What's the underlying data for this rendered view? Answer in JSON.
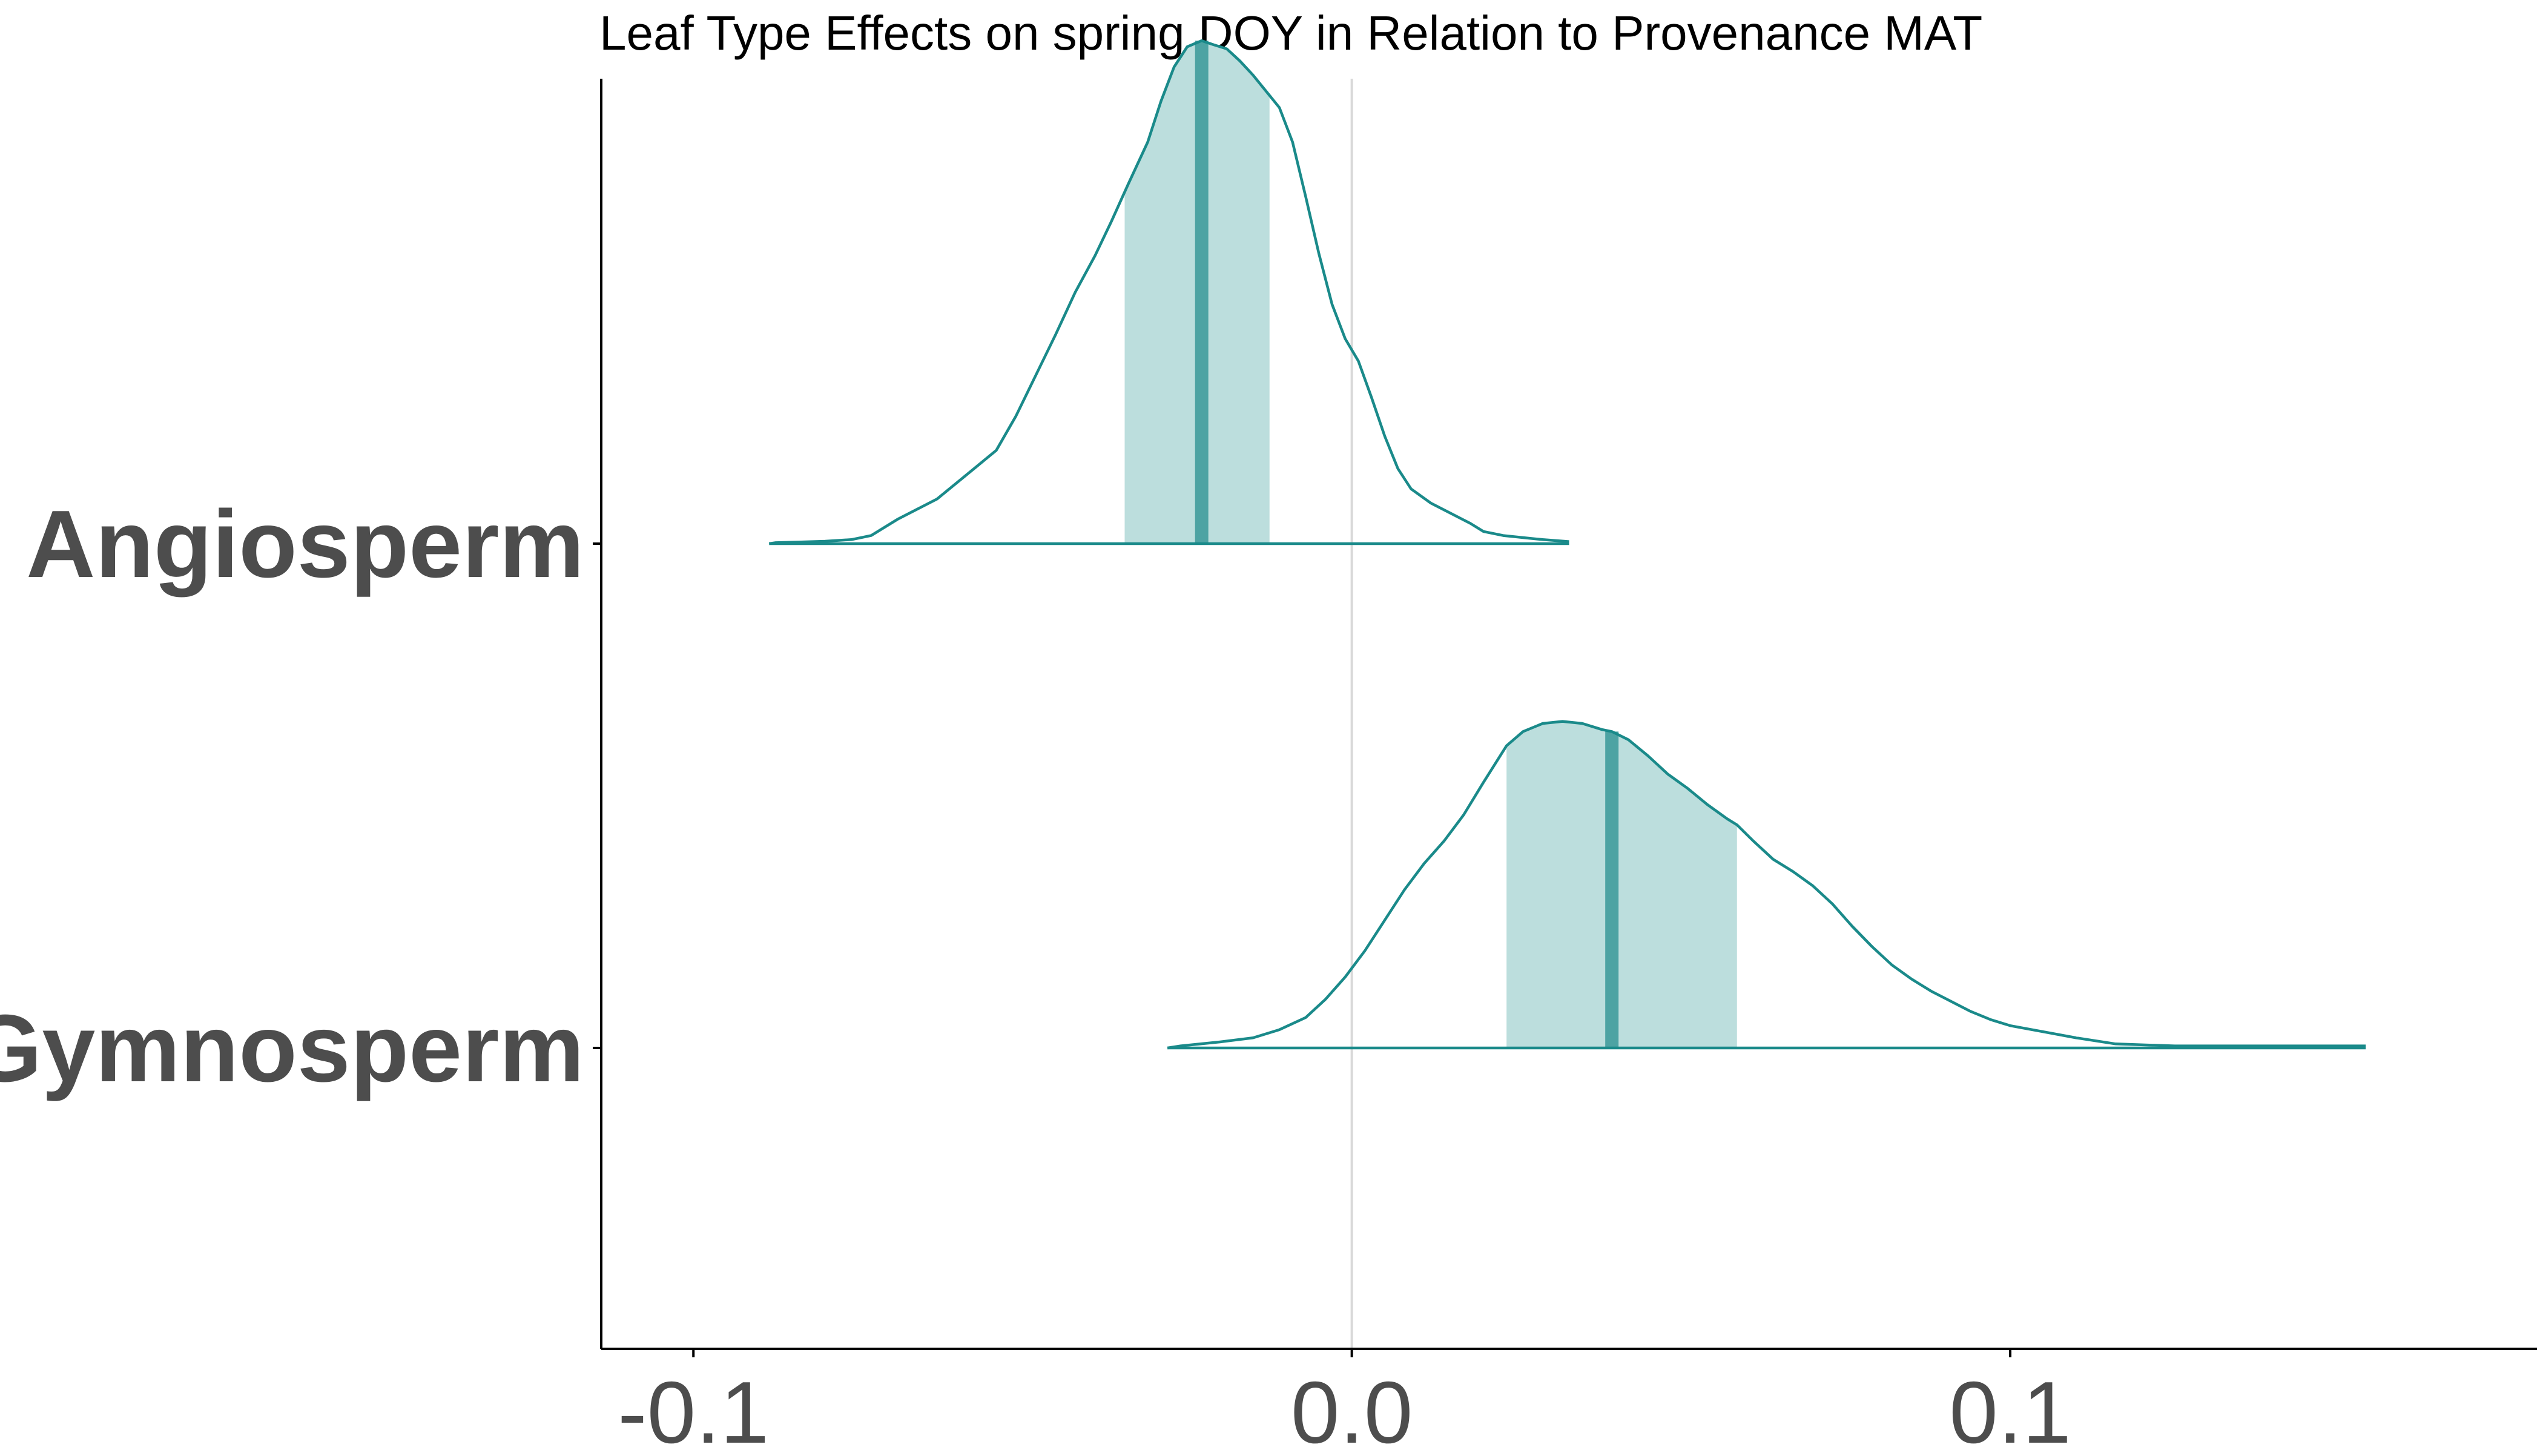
{
  "chart_data": {
    "type": "density_ridges",
    "title": "Leaf Type Effects on spring DOY in Relation to Provenance MAT",
    "xlabel": "",
    "ylabel": "",
    "xlim": [
      -0.114,
      0.18
    ],
    "x_ticks": [
      {
        "value": -0.1,
        "label": "-0.1"
      },
      {
        "value": 0.0,
        "label": "0.0"
      },
      {
        "value": 0.1,
        "label": "0.1"
      }
    ],
    "reference_line_x": 0.0,
    "grid": false,
    "colors": {
      "outline": "#1a8a8a",
      "interval_fill": "#bcdedd",
      "median_line": "#4da3a3",
      "reference_line": "#d9d9d9",
      "axis": "#000000",
      "label": "#4d4d4d"
    },
    "series": [
      {
        "name": "Angiosperm",
        "median": -0.0228,
        "interval": [
          -0.0345,
          -0.0125
        ],
        "density": [
          [
            -0.0885,
            0.0
          ],
          [
            -0.0875,
            0.005
          ],
          [
            -0.084,
            0.008
          ],
          [
            -0.08,
            0.012
          ],
          [
            -0.076,
            0.02
          ],
          [
            -0.073,
            0.04
          ],
          [
            -0.071,
            0.08
          ],
          [
            -0.069,
            0.12
          ],
          [
            -0.066,
            0.17
          ],
          [
            -0.063,
            0.22
          ],
          [
            -0.06,
            0.3
          ],
          [
            -0.057,
            0.38
          ],
          [
            -0.054,
            0.46
          ],
          [
            -0.051,
            0.63
          ],
          [
            -0.048,
            0.83
          ],
          [
            -0.045,
            1.03
          ],
          [
            -0.042,
            1.24
          ],
          [
            -0.039,
            1.42
          ],
          [
            -0.0365,
            1.59
          ],
          [
            -0.034,
            1.77
          ],
          [
            -0.031,
            1.98
          ],
          [
            -0.029,
            2.18
          ],
          [
            -0.027,
            2.35
          ],
          [
            -0.025,
            2.45
          ],
          [
            -0.0228,
            2.48
          ],
          [
            -0.021,
            2.46
          ],
          [
            -0.019,
            2.44
          ],
          [
            -0.017,
            2.38
          ],
          [
            -0.015,
            2.31
          ],
          [
            -0.013,
            2.23
          ],
          [
            -0.011,
            2.15
          ],
          [
            -0.009,
            1.98
          ],
          [
            -0.007,
            1.71
          ],
          [
            -0.005,
            1.43
          ],
          [
            -0.003,
            1.18
          ],
          [
            -0.001,
            1.01
          ],
          [
            0.001,
            0.9
          ],
          [
            0.003,
            0.72
          ],
          [
            0.005,
            0.53
          ],
          [
            0.007,
            0.37
          ],
          [
            0.009,
            0.27
          ],
          [
            0.012,
            0.2
          ],
          [
            0.015,
            0.15
          ],
          [
            0.018,
            0.1
          ],
          [
            0.02,
            0.06
          ],
          [
            0.023,
            0.04
          ],
          [
            0.026,
            0.03
          ],
          [
            0.029,
            0.02
          ],
          [
            0.033,
            0.01
          ]
        ]
      },
      {
        "name": "Gymnosperm",
        "median": 0.0395,
        "interval": [
          0.0235,
          0.0585
        ],
        "density": [
          [
            -0.028,
            0.0
          ],
          [
            -0.026,
            0.01
          ],
          [
            -0.02,
            0.03
          ],
          [
            -0.015,
            0.05
          ],
          [
            -0.011,
            0.09
          ],
          [
            -0.007,
            0.15
          ],
          [
            -0.004,
            0.24
          ],
          [
            -0.001,
            0.35
          ],
          [
            0.002,
            0.48
          ],
          [
            0.005,
            0.63
          ],
          [
            0.008,
            0.78
          ],
          [
            0.011,
            0.91
          ],
          [
            0.014,
            1.02
          ],
          [
            0.017,
            1.15
          ],
          [
            0.02,
            1.31
          ],
          [
            0.0235,
            1.49
          ],
          [
            0.026,
            1.56
          ],
          [
            0.029,
            1.6
          ],
          [
            0.032,
            1.61
          ],
          [
            0.035,
            1.6
          ],
          [
            0.038,
            1.57
          ],
          [
            0.0395,
            1.56
          ],
          [
            0.042,
            1.52
          ],
          [
            0.045,
            1.44
          ],
          [
            0.048,
            1.35
          ],
          [
            0.051,
            1.28
          ],
          [
            0.054,
            1.2
          ],
          [
            0.057,
            1.13
          ],
          [
            0.0585,
            1.1
          ],
          [
            0.061,
            1.02
          ],
          [
            0.064,
            0.93
          ],
          [
            0.067,
            0.87
          ],
          [
            0.07,
            0.8
          ],
          [
            0.073,
            0.71
          ],
          [
            0.076,
            0.6
          ],
          [
            0.079,
            0.5
          ],
          [
            0.082,
            0.41
          ],
          [
            0.085,
            0.34
          ],
          [
            0.088,
            0.28
          ],
          [
            0.091,
            0.23
          ],
          [
            0.094,
            0.18
          ],
          [
            0.097,
            0.14
          ],
          [
            0.1,
            0.11
          ],
          [
            0.105,
            0.08
          ],
          [
            0.11,
            0.05
          ],
          [
            0.116,
            0.02
          ],
          [
            0.125,
            0.01
          ],
          [
            0.14,
            0.01
          ],
          [
            0.154,
            0.01
          ]
        ]
      }
    ]
  }
}
